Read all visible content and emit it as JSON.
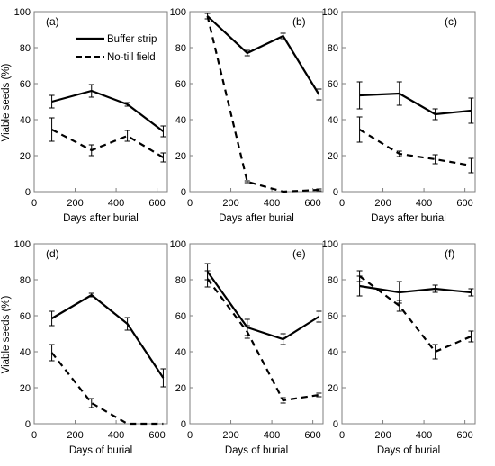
{
  "figure": {
    "y_axis_label": "Viable seeds (%)",
    "legend": {
      "buffer_label": "Buffer strip",
      "notill_label": "No-till field"
    }
  },
  "chart_data": [
    {
      "type": "line",
      "panel_label": "(a)",
      "xlabel": "Days after burial",
      "ylabel": "Viable seeds (%)",
      "xlim": [
        0,
        650
      ],
      "ylim": [
        0,
        100
      ],
      "xticks": [
        "0",
        "200",
        "400",
        "600"
      ],
      "yticks": [
        "0",
        "20",
        "40",
        "60",
        "80",
        "100"
      ],
      "x": [
        86,
        280,
        455,
        630
      ],
      "series": [
        {
          "name": "Buffer strip",
          "style": "solid",
          "values": [
            50,
            56,
            48.5,
            33.5
          ],
          "error": [
            3.5,
            3.5,
            1,
            3
          ]
        },
        {
          "name": "No-till field",
          "style": "dashed",
          "values": [
            34.5,
            23,
            31,
            19
          ],
          "error": [
            6.5,
            3,
            3,
            2.5
          ]
        }
      ],
      "legend": "top-center"
    },
    {
      "type": "line",
      "panel_label": "(b)",
      "xlabel": "Days after burial",
      "ylabel": "",
      "xlim": [
        0,
        650
      ],
      "ylim": [
        0,
        100
      ],
      "xticks": [
        "0",
        "200",
        "400",
        "600"
      ],
      "yticks": [
        "0",
        "20",
        "40",
        "60",
        "80",
        "100"
      ],
      "x": [
        86,
        280,
        455,
        630
      ],
      "series": [
        {
          "name": "Buffer strip",
          "style": "solid",
          "values": [
            97.5,
            77,
            86.5,
            54
          ],
          "error": [
            1.5,
            1.5,
            1.5,
            3
          ]
        },
        {
          "name": "No-till field",
          "style": "dashed",
          "values": [
            97.5,
            5.5,
            0,
            1
          ],
          "error": [
            0,
            0.5,
            0,
            0.5
          ]
        }
      ]
    },
    {
      "type": "line",
      "panel_label": "(c)",
      "xlabel": "Days after burial",
      "ylabel": "",
      "xlim": [
        0,
        650
      ],
      "ylim": [
        0,
        100
      ],
      "xticks": [
        "0",
        "200",
        "400",
        "600"
      ],
      "yticks": [
        "0",
        "20",
        "40",
        "60",
        "80",
        "100"
      ],
      "x": [
        86,
        280,
        455,
        630
      ],
      "series": [
        {
          "name": "Buffer strip",
          "style": "solid",
          "values": [
            53.5,
            54.5,
            43,
            45
          ],
          "error": [
            7.5,
            6.5,
            3,
            7
          ]
        },
        {
          "name": "No-till field",
          "style": "dashed",
          "values": [
            34.5,
            21,
            18,
            14.5
          ],
          "error": [
            7,
            1.5,
            2.5,
            4
          ]
        }
      ]
    },
    {
      "type": "line",
      "panel_label": "(d)",
      "xlabel": "Days of burial",
      "ylabel": "Viable seeds (%)",
      "xlim": [
        0,
        650
      ],
      "ylim": [
        0,
        100
      ],
      "xticks": [
        "0",
        "200",
        "400",
        "600"
      ],
      "yticks": [
        "0",
        "20",
        "40",
        "60",
        "80",
        "100"
      ],
      "x": [
        86,
        280,
        455,
        630
      ],
      "series": [
        {
          "name": "Buffer strip",
          "style": "solid",
          "values": [
            58.5,
            71.5,
            55.5,
            25.5
          ],
          "error": [
            4,
            1,
            3.5,
            5
          ]
        },
        {
          "name": "No-till field",
          "style": "dashed",
          "values": [
            39.5,
            11.5,
            0,
            0
          ],
          "error": [
            4.5,
            2.5,
            0,
            0
          ]
        }
      ]
    },
    {
      "type": "line",
      "panel_label": "(e)",
      "xlabel": "Days of burial",
      "ylabel": "",
      "xlim": [
        0,
        650
      ],
      "ylim": [
        0,
        100
      ],
      "xticks": [
        "0",
        "200",
        "400",
        "600"
      ],
      "yticks": [
        "0",
        "20",
        "40",
        "60",
        "80",
        "100"
      ],
      "x": [
        86,
        280,
        455,
        630
      ],
      "series": [
        {
          "name": "Buffer strip",
          "style": "solid",
          "values": [
            84.5,
            53.5,
            47,
            59.5
          ],
          "error": [
            4.5,
            4.5,
            3,
            3
          ]
        },
        {
          "name": "No-till field",
          "style": "dashed",
          "values": [
            80.5,
            51,
            13,
            16
          ],
          "error": [
            4.5,
            3.5,
            1.5,
            1
          ]
        }
      ]
    },
    {
      "type": "line",
      "panel_label": "(f)",
      "xlabel": "Days of burial",
      "ylabel": "",
      "xlim": [
        0,
        650
      ],
      "ylim": [
        0,
        100
      ],
      "xticks": [
        "0",
        "200",
        "400",
        "600"
      ],
      "yticks": [
        "0",
        "20",
        "40",
        "60",
        "80",
        "100"
      ],
      "x": [
        86,
        280,
        455,
        630
      ],
      "series": [
        {
          "name": "Buffer strip",
          "style": "solid",
          "values": [
            76.5,
            73,
            75,
            73
          ],
          "error": [
            5.5,
            6,
            2,
            2
          ]
        },
        {
          "name": "No-till field",
          "style": "dashed",
          "values": [
            82,
            65.5,
            40,
            48.5
          ],
          "error": [
            3,
            3,
            4,
            3
          ]
        }
      ]
    }
  ]
}
